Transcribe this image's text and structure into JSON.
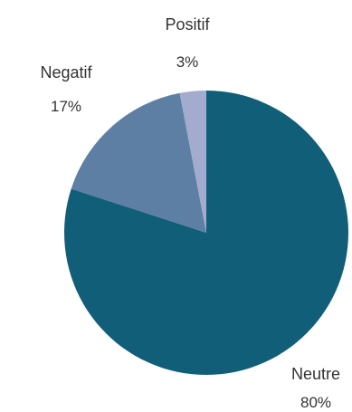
{
  "chart_data": {
    "type": "pie",
    "title": "",
    "slices": [
      {
        "label": "Neutre",
        "value": 80,
        "value_label": "80%",
        "color": "#115e79"
      },
      {
        "label": "Negatif",
        "value": 17,
        "value_label": "17%",
        "color": "#5e7fa4"
      },
      {
        "label": "Positif",
        "value": 3,
        "value_label": "3%",
        "color": "#a3abcf"
      }
    ],
    "start": "12 o'clock",
    "direction": "clockwise",
    "legend": "none",
    "labels": "outside"
  }
}
